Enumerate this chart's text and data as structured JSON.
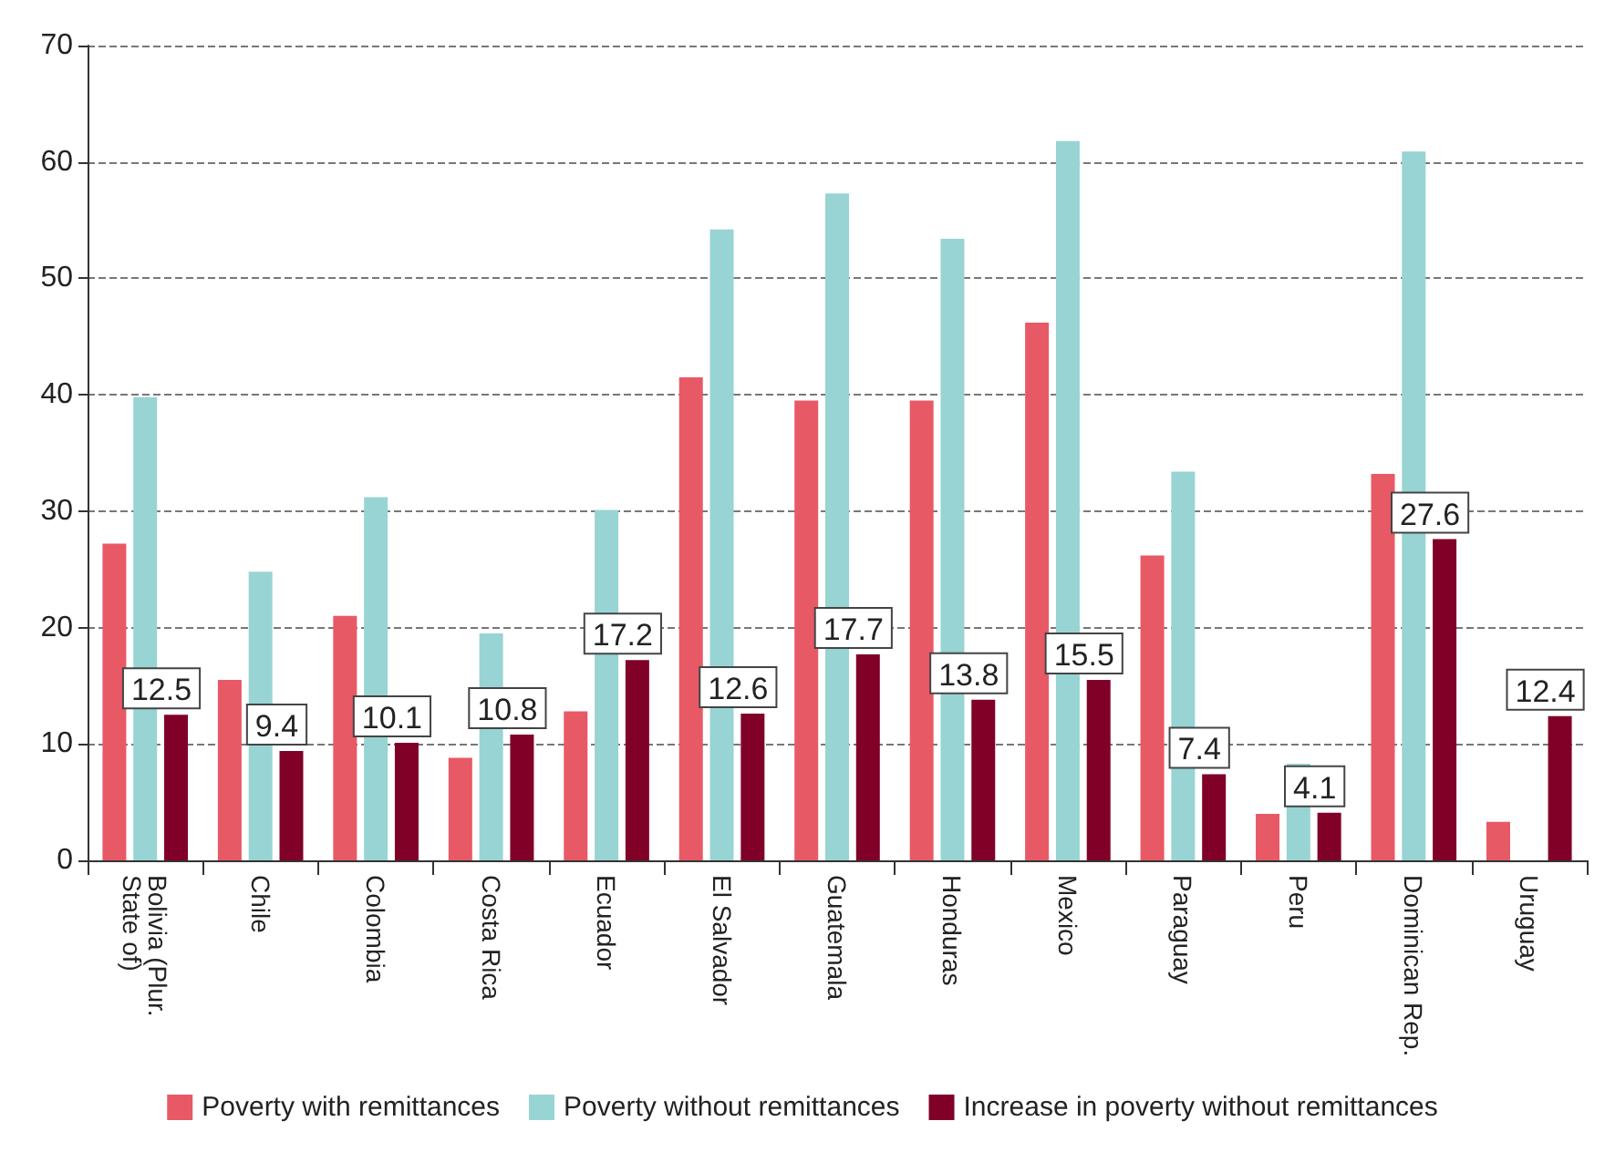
{
  "chart_data": {
    "type": "bar",
    "categories": [
      "Bolivia (Plur. State of)",
      "Chile",
      "Colombia",
      "Costa Rica",
      "Ecuador",
      "El Salvador",
      "Guatemala",
      "Honduras",
      "Mexico",
      "Paraguay",
      "Peru",
      "Dominican Rep.",
      "Uruguay"
    ],
    "series": [
      {
        "name": "Poverty with remittances",
        "color": "#e85966",
        "values": [
          27.2,
          15.5,
          21.0,
          8.8,
          12.8,
          41.5,
          39.5,
          39.5,
          46.2,
          26.2,
          4.0,
          33.2,
          3.3
        ]
      },
      {
        "name": "Poverty without remittances",
        "color": "#98d4d4",
        "values": [
          39.8,
          24.8,
          31.2,
          19.5,
          30.1,
          54.2,
          57.3,
          53.4,
          61.8,
          33.4,
          8.3,
          60.9,
          null
        ]
      },
      {
        "name": "Increase in poverty without remittances",
        "color": "#800028",
        "values": [
          12.5,
          9.4,
          10.1,
          10.8,
          17.2,
          12.6,
          17.7,
          13.8,
          15.5,
          7.4,
          4.1,
          27.6,
          12.4
        ],
        "value_labels": [
          "12.5",
          "9.4",
          "10.1",
          "10.8",
          "17.2",
          "12.6",
          "17.7",
          "13.8",
          "15.5",
          "7.4",
          "4.1",
          "27.6",
          "12.4"
        ]
      }
    ],
    "ylim": [
      0,
      70
    ],
    "yticks": [
      0,
      10,
      20,
      30,
      40,
      50,
      60,
      70
    ],
    "grid": "y",
    "legend": "bottom"
  }
}
